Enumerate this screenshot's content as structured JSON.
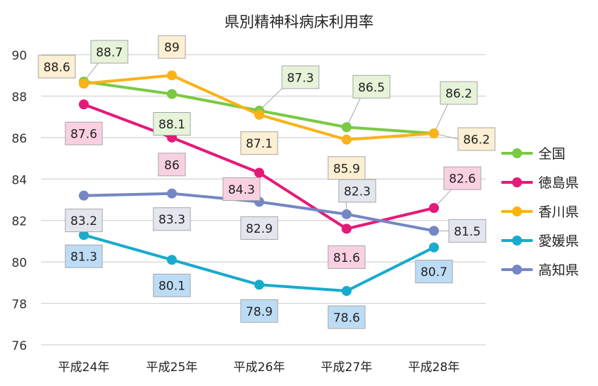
{
  "chart_data": {
    "type": "line",
    "title": "県別精神科病床利用率",
    "xlabel": "",
    "ylabel": "",
    "categories": [
      "平成24年",
      "平成25年",
      "平成26年",
      "平成27年",
      "平成28年"
    ],
    "ylim": [
      76,
      90
    ],
    "yticks": [
      "76",
      "78",
      "80",
      "82",
      "84",
      "86",
      "88",
      "90"
    ],
    "grid": true,
    "legend_position": "right",
    "series": [
      {
        "name": "全国",
        "color": "#7ac943",
        "label_bg": "#e6f3d8",
        "values": [
          88.7,
          88.1,
          87.3,
          86.5,
          86.2
        ],
        "labels": [
          "88.7",
          "88.1",
          "87.3",
          "86.5",
          "86.2"
        ]
      },
      {
        "name": "徳島県",
        "color": "#e5197a",
        "label_bg": "#f9d0e2",
        "values": [
          87.6,
          86,
          84.3,
          81.6,
          82.6
        ],
        "labels": [
          "87.6",
          "86",
          "84.3",
          "81.6",
          "82.6"
        ]
      },
      {
        "name": "香川県",
        "color": "#f9b217",
        "label_bg": "#fdefd3",
        "values": [
          88.6,
          89,
          87.1,
          85.9,
          86.2
        ],
        "labels": [
          "88.6",
          "89",
          "87.1",
          "85.9",
          "86.2"
        ]
      },
      {
        "name": "愛媛県",
        "color": "#17abcc",
        "label_bg": "#bcdcf5",
        "values": [
          81.3,
          80.1,
          78.9,
          78.6,
          80.7
        ],
        "labels": [
          "81.3",
          "80.1",
          "78.9",
          "78.6",
          "80.7"
        ]
      },
      {
        "name": "高知県",
        "color": "#7487c3",
        "label_bg": "#e4e6ef",
        "values": [
          83.2,
          83.3,
          82.9,
          82.3,
          81.5
        ],
        "labels": [
          "83.2",
          "83.3",
          "82.9",
          "82.3",
          "81.5"
        ]
      }
    ]
  }
}
